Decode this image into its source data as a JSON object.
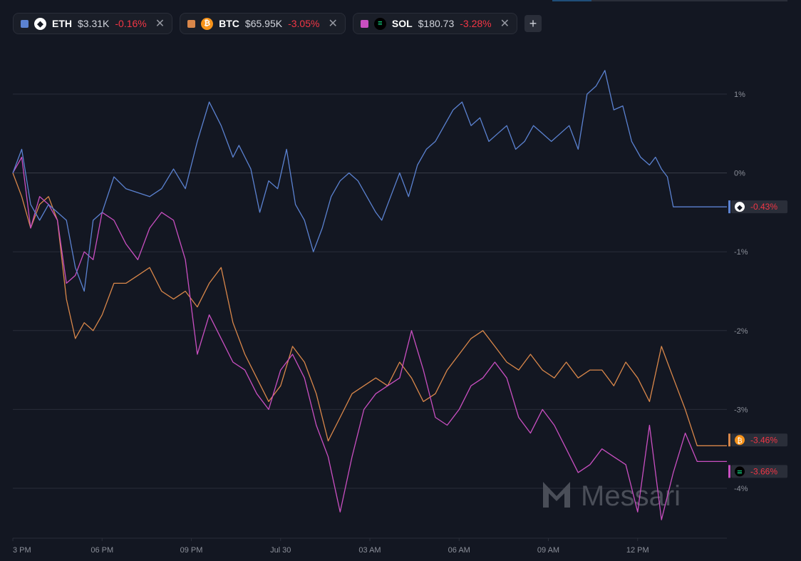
{
  "assets": [
    {
      "symbol": "ETH",
      "price": "$3.31K",
      "change": "-0.16%",
      "color": "#5b82d1",
      "icon": "ethereum-icon",
      "icon_bg": "#ffffff",
      "icon_fg": "#131722",
      "icon_glyph": "◆",
      "final_change": "-0.43%"
    },
    {
      "symbol": "BTC",
      "price": "$65.95K",
      "change": "-3.05%",
      "color": "#d9874a",
      "icon": "bitcoin-icon",
      "icon_bg": "#f7931a",
      "icon_fg": "#ffffff",
      "icon_glyph": "₿",
      "final_change": "-3.46%"
    },
    {
      "symbol": "SOL",
      "price": "$180.73",
      "change": "-3.28%",
      "color": "#c94fc1",
      "icon": "solana-icon",
      "icon_bg": "#000000",
      "icon_fg": "#14f195",
      "icon_glyph": "≡",
      "final_change": "-3.66%"
    }
  ],
  "add_button": "+",
  "close_glyph": "✕",
  "watermark": "Messari",
  "colors": {
    "background": "#131722",
    "grid": "#2a2e39",
    "negative": "#f23645"
  },
  "chart_data": {
    "type": "line",
    "x_ticks": [
      "3 PM",
      "06 PM",
      "09 PM",
      "Jul 30",
      "03 AM",
      "06 AM",
      "09 AM",
      "12 PM"
    ],
    "y_ticks": [
      "1%",
      "0%",
      "-1%",
      "-2%",
      "-3%",
      "-4%"
    ],
    "y_tick_values": [
      1,
      0,
      -1,
      -2,
      -3,
      -4
    ],
    "ylim": [
      -4.65,
      1.98
    ],
    "x_hours_range": [
      0,
      24.0
    ],
    "x_tick_hours": [
      0,
      3,
      6,
      9,
      12,
      15,
      18,
      21
    ],
    "series": [
      {
        "name": "ETH",
        "x": [
          0,
          0.3,
          0.6,
          0.9,
          1.2,
          1.5,
          1.8,
          2.1,
          2.4,
          2.7,
          3.0,
          3.4,
          3.8,
          4.2,
          4.6,
          5.0,
          5.4,
          5.8,
          6.2,
          6.6,
          7.0,
          7.4,
          7.6,
          7.8,
          8.0,
          8.3,
          8.6,
          8.9,
          9.2,
          9.5,
          9.8,
          10.1,
          10.4,
          10.7,
          11.0,
          11.3,
          11.6,
          11.9,
          12.2,
          12.4,
          12.6,
          12.8,
          13.0,
          13.3,
          13.6,
          13.9,
          14.2,
          14.5,
          14.8,
          15.1,
          15.4,
          15.7,
          16.0,
          16.3,
          16.6,
          16.9,
          17.2,
          17.5,
          17.8,
          18.1,
          18.4,
          18.7,
          19.0,
          19.3,
          19.6,
          19.9,
          20.2,
          20.5,
          20.8,
          21.1,
          21.4,
          21.6,
          21.8,
          22.0,
          22.2,
          22.4,
          22.6,
          22.8,
          23.0,
          23.2,
          23.4,
          23.6,
          23.8,
          24.0
        ],
        "y": [
          0,
          0.3,
          -0.4,
          -0.6,
          -0.4,
          -0.5,
          -0.6,
          -1.2,
          -1.5,
          -0.6,
          -0.5,
          -0.05,
          -0.2,
          -0.25,
          -0.3,
          -0.2,
          0.05,
          -0.2,
          0.4,
          0.9,
          0.6,
          0.2,
          0.35,
          0.2,
          0.05,
          -0.5,
          -0.1,
          -0.2,
          0.3,
          -0.4,
          -0.6,
          -1.0,
          -0.7,
          -0.3,
          -0.1,
          0.0,
          -0.1,
          -0.3,
          -0.5,
          -0.6,
          -0.4,
          -0.2,
          0.0,
          -0.3,
          0.1,
          0.3,
          0.4,
          0.6,
          0.8,
          0.9,
          0.6,
          0.7,
          0.4,
          0.5,
          0.6,
          0.3,
          0.4,
          0.6,
          0.5,
          0.4,
          0.5,
          0.6,
          0.3,
          1.0,
          1.1,
          1.3,
          0.8,
          0.85,
          0.4,
          0.2,
          0.1,
          0.2,
          0.05,
          -0.05,
          -0.43,
          -0.43,
          -0.43,
          -0.43,
          -0.43,
          -0.43,
          -0.43,
          -0.43,
          -0.43,
          -0.43
        ],
        "end_hour": 24.0
      },
      {
        "name": "BTC",
        "x": [
          0,
          0.3,
          0.6,
          0.9,
          1.2,
          1.5,
          1.8,
          2.1,
          2.4,
          2.7,
          3.0,
          3.4,
          3.8,
          4.2,
          4.6,
          5.0,
          5.4,
          5.8,
          6.2,
          6.6,
          7.0,
          7.4,
          7.8,
          8.2,
          8.6,
          9.0,
          9.4,
          9.8,
          10.2,
          10.6,
          11.0,
          11.4,
          11.8,
          12.2,
          12.6,
          13.0,
          13.4,
          13.8,
          14.2,
          14.6,
          15.0,
          15.4,
          15.8,
          16.2,
          16.6,
          17.0,
          17.4,
          17.8,
          18.2,
          18.6,
          19.0,
          19.4,
          19.8,
          20.2,
          20.6,
          21.0,
          21.4,
          21.8,
          22.2,
          22.6,
          23.0,
          23.4,
          23.8,
          24.0
        ],
        "y": [
          0,
          -0.3,
          -0.7,
          -0.4,
          -0.3,
          -0.6,
          -1.6,
          -2.1,
          -1.9,
          -2.0,
          -1.8,
          -1.4,
          -1.4,
          -1.3,
          -1.2,
          -1.5,
          -1.6,
          -1.5,
          -1.7,
          -1.4,
          -1.2,
          -1.9,
          -2.3,
          -2.6,
          -2.9,
          -2.7,
          -2.2,
          -2.4,
          -2.8,
          -3.4,
          -3.1,
          -2.8,
          -2.7,
          -2.6,
          -2.7,
          -2.4,
          -2.6,
          -2.9,
          -2.8,
          -2.5,
          -2.3,
          -2.1,
          -2.0,
          -2.2,
          -2.4,
          -2.5,
          -2.3,
          -2.5,
          -2.6,
          -2.4,
          -2.6,
          -2.5,
          -2.5,
          -2.7,
          -2.4,
          -2.6,
          -2.9,
          -2.2,
          -2.6,
          -3.0,
          -3.46,
          -3.46,
          -3.46,
          -3.46
        ],
        "end_hour": 24.0
      },
      {
        "name": "SOL",
        "x": [
          0,
          0.3,
          0.6,
          0.9,
          1.2,
          1.5,
          1.8,
          2.1,
          2.4,
          2.7,
          3.0,
          3.4,
          3.8,
          4.2,
          4.6,
          5.0,
          5.4,
          5.8,
          6.2,
          6.6,
          7.0,
          7.4,
          7.8,
          8.2,
          8.6,
          9.0,
          9.4,
          9.8,
          10.2,
          10.6,
          11.0,
          11.4,
          11.8,
          12.2,
          12.6,
          13.0,
          13.4,
          13.8,
          14.2,
          14.6,
          15.0,
          15.4,
          15.8,
          16.2,
          16.6,
          17.0,
          17.4,
          17.8,
          18.2,
          18.6,
          19.0,
          19.4,
          19.8,
          20.2,
          20.6,
          21.0,
          21.4,
          21.8,
          22.2,
          22.6,
          23.0,
          23.4,
          23.8,
          24.0
        ],
        "y": [
          0,
          0.2,
          -0.7,
          -0.3,
          -0.4,
          -0.6,
          -1.4,
          -1.3,
          -1.0,
          -1.1,
          -0.5,
          -0.6,
          -0.9,
          -1.1,
          -0.7,
          -0.5,
          -0.6,
          -1.1,
          -2.3,
          -1.8,
          -2.1,
          -2.4,
          -2.5,
          -2.8,
          -3.0,
          -2.5,
          -2.3,
          -2.6,
          -3.2,
          -3.6,
          -4.3,
          -3.6,
          -3.0,
          -2.8,
          -2.7,
          -2.6,
          -2.0,
          -2.5,
          -3.1,
          -3.2,
          -3.0,
          -2.7,
          -2.6,
          -2.4,
          -2.6,
          -3.1,
          -3.3,
          -3.0,
          -3.2,
          -3.5,
          -3.8,
          -3.7,
          -3.5,
          -3.6,
          -3.7,
          -4.3,
          -3.2,
          -4.4,
          -3.8,
          -3.3,
          -3.66,
          -3.66,
          -3.66,
          -3.66
        ],
        "end_hour": 24.0
      }
    ]
  }
}
